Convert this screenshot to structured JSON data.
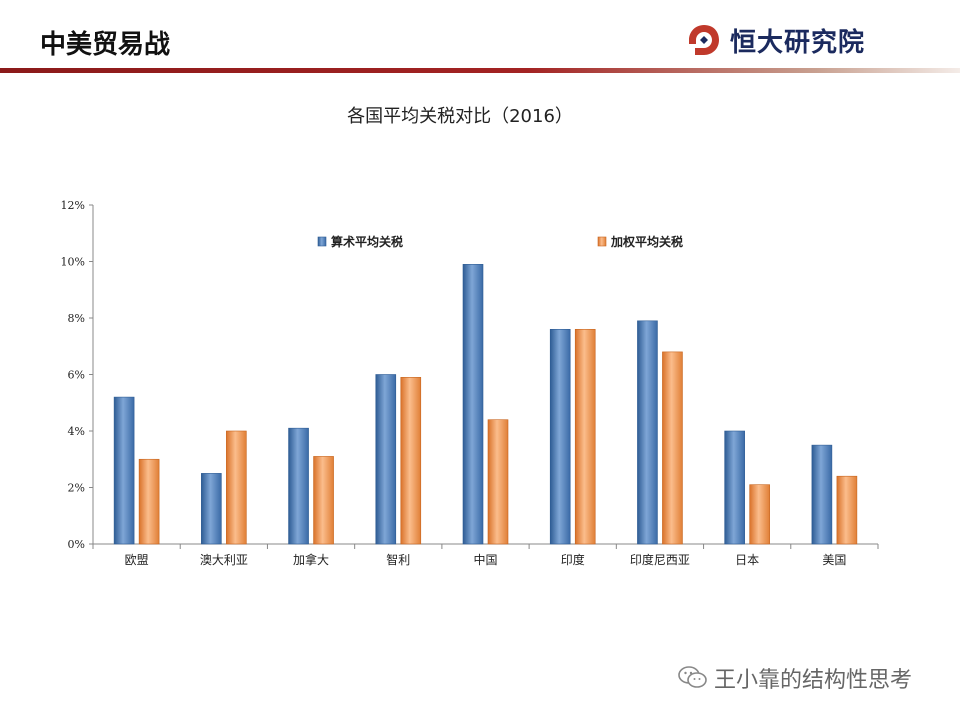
{
  "header": {
    "title": "中美贸易战",
    "brand_name": "恒大研究院",
    "brand_icon": "hengda-logo-icon"
  },
  "chart_data": {
    "type": "bar",
    "title": "各国平均关税对比（2016）",
    "categories": [
      "欧盟",
      "澳大利亚",
      "加拿大",
      "智利",
      "中国",
      "印度",
      "印度尼西亚",
      "日本",
      "美国"
    ],
    "series": [
      {
        "name": "算术平均关税",
        "color": "#4f81bd",
        "values": [
          5.2,
          2.5,
          4.1,
          6.0,
          9.9,
          7.6,
          7.9,
          4.0,
          3.5
        ]
      },
      {
        "name": "加权平均关税",
        "color": "#f79646",
        "values": [
          3.0,
          4.0,
          3.1,
          5.9,
          4.4,
          7.6,
          6.8,
          2.1,
          2.4
        ]
      }
    ],
    "y_ticks": [
      "0%",
      "2%",
      "4%",
      "6%",
      "8%",
      "10%",
      "12%"
    ],
    "ylim": [
      0,
      12
    ],
    "y_unit": "%",
    "legend_position": "top",
    "grid": false
  },
  "watermark": {
    "text": "王小靠的结构性思考",
    "icon": "wechat-icon"
  }
}
